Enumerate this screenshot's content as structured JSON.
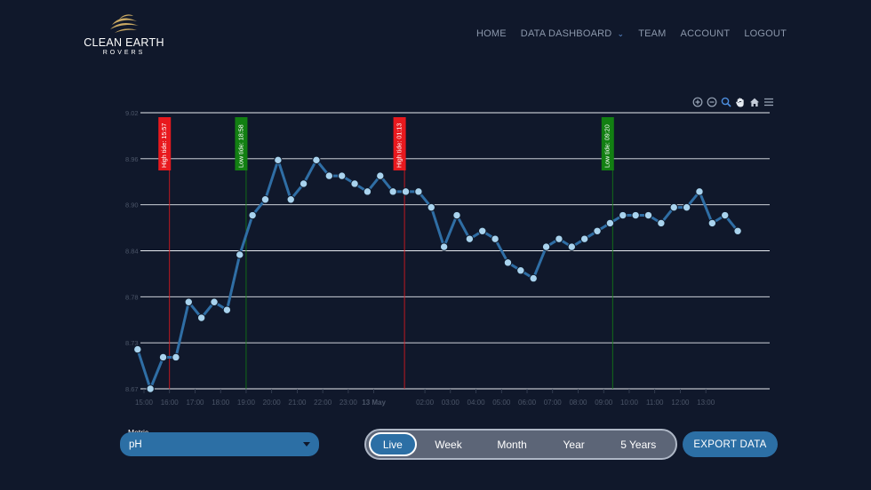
{
  "brand": {
    "name": "CLEAN EARTH",
    "sub": "ROVERS"
  },
  "nav": {
    "home": "HOME",
    "dashboard": "DATA DASHBOARD",
    "team": "TEAM",
    "account": "ACCOUNT",
    "logout": "LOGOUT"
  },
  "toolbar_icons": [
    "zoom-in-icon",
    "zoom-out-icon",
    "zoom-select-icon",
    "pan-hand-icon",
    "reset-home-icon",
    "menu-icon"
  ],
  "colors": {
    "background": "#10182b",
    "line": "#2f6ea5",
    "marker_fill": "#a9d3ee",
    "high_tide": "#e8191e",
    "low_tide": "#127f12",
    "accent": "#2c6fa5"
  },
  "chart_data": {
    "type": "line",
    "title": "",
    "xlabel": "",
    "ylabel": "",
    "ylim": [
      8.67,
      9.02
    ],
    "yticks": [
      "8.67",
      "8.73",
      "8.78",
      "8.84",
      "8.90",
      "8.96",
      "9.02"
    ],
    "x_start": 15.0,
    "x_end": 39.5,
    "xticks": [
      {
        "x": 15,
        "label": "15:00"
      },
      {
        "x": 16,
        "label": "16:00"
      },
      {
        "x": 17,
        "label": "17:00"
      },
      {
        "x": 18,
        "label": "18:00"
      },
      {
        "x": 19,
        "label": "19:00"
      },
      {
        "x": 20,
        "label": "20:00"
      },
      {
        "x": 21,
        "label": "21:00"
      },
      {
        "x": 22,
        "label": "22:00"
      },
      {
        "x": 23,
        "label": "23:00"
      },
      {
        "x": 24,
        "label": "13 May"
      },
      {
        "x": 26,
        "label": "02:00"
      },
      {
        "x": 27,
        "label": "03:00"
      },
      {
        "x": 28,
        "label": "04:00"
      },
      {
        "x": 29,
        "label": "05:00"
      },
      {
        "x": 30,
        "label": "06:00"
      },
      {
        "x": 31,
        "label": "07:00"
      },
      {
        "x": 32,
        "label": "08:00"
      },
      {
        "x": 33,
        "label": "09:00"
      },
      {
        "x": 34,
        "label": "10:00"
      },
      {
        "x": 35,
        "label": "11:00"
      },
      {
        "x": 36,
        "label": "12:00"
      },
      {
        "x": 37,
        "label": "13:00"
      }
    ],
    "series": [
      {
        "name": "pH",
        "x": [
          14.75,
          15.25,
          15.75,
          16.25,
          16.75,
          17.25,
          17.75,
          18.25,
          18.75,
          19.25,
          19.75,
          20.25,
          20.75,
          21.25,
          21.75,
          22.25,
          22.75,
          23.25,
          23.75,
          24.25,
          24.75,
          25.25,
          25.75,
          26.25,
          26.75,
          27.25,
          27.75,
          28.25,
          28.75,
          29.25,
          29.75,
          30.25,
          30.75,
          31.25,
          31.75,
          32.25,
          32.75,
          33.25,
          33.75,
          34.25,
          34.75,
          35.25,
          35.75,
          36.25,
          36.75,
          37.25,
          37.75,
          38.25
        ],
        "values": [
          8.72,
          8.67,
          8.71,
          8.71,
          8.78,
          8.76,
          8.78,
          8.77,
          8.84,
          8.89,
          8.91,
          8.96,
          8.91,
          8.93,
          8.96,
          8.94,
          8.94,
          8.93,
          8.92,
          8.94,
          8.92,
          8.92,
          8.92,
          8.9,
          8.85,
          8.89,
          8.86,
          8.87,
          8.86,
          8.83,
          8.82,
          8.81,
          8.85,
          8.86,
          8.85,
          8.86,
          8.87,
          8.88,
          8.89,
          8.89,
          8.89,
          8.88,
          8.9,
          8.9,
          8.92,
          8.88,
          8.89,
          8.87
        ]
      }
    ],
    "annotations": [
      {
        "x": 16.0,
        "label": "High tide: 15:57",
        "kind": "high"
      },
      {
        "x": 19.0,
        "label": "Low tide: 18:58",
        "kind": "low"
      },
      {
        "x": 25.2,
        "label": "High tide: 01:13",
        "kind": "high"
      },
      {
        "x": 33.35,
        "label": "Low tide: 09:20",
        "kind": "low"
      }
    ]
  },
  "controls": {
    "metric_label": "Metric",
    "metric_value": "pH",
    "periods": [
      "Live",
      "Week",
      "Month",
      "Year",
      "5 Years"
    ],
    "active_period": "Live",
    "export_label": "EXPORT DATA"
  }
}
